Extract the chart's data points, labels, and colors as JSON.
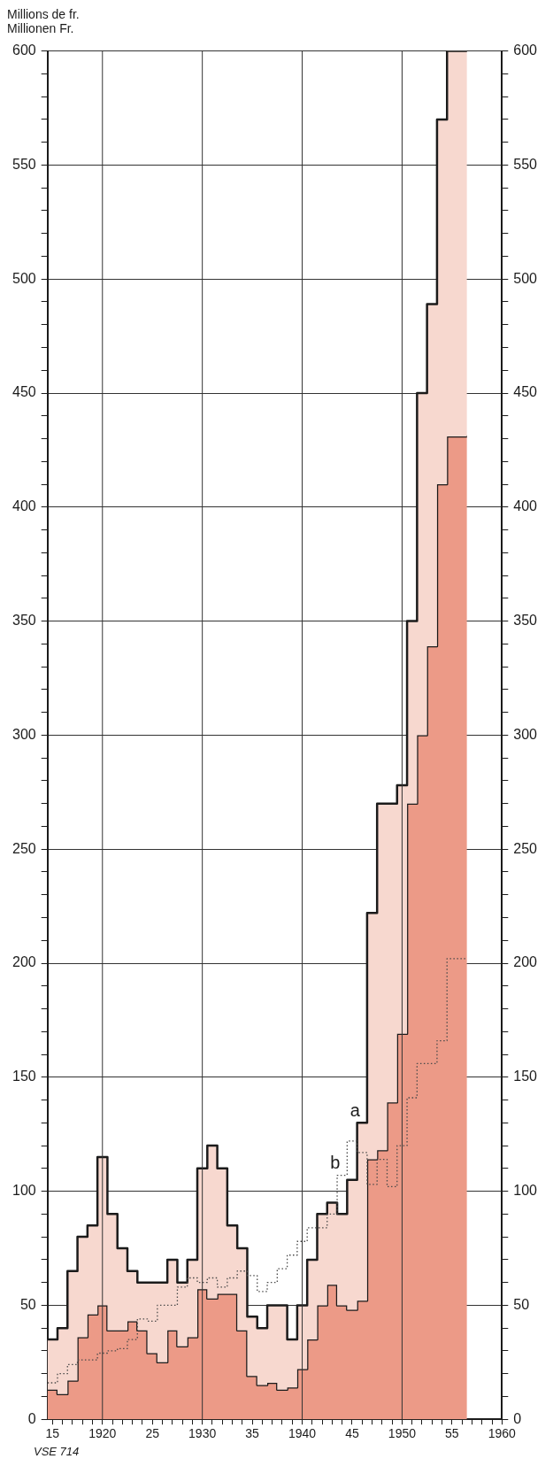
{
  "chart_data": {
    "type": "step",
    "ylabel": "Millions de fr.\nMillionen Fr.",
    "x": [
      1915,
      1916,
      1917,
      1918,
      1919,
      1920,
      1921,
      1922,
      1923,
      1924,
      1925,
      1926,
      1927,
      1928,
      1929,
      1930,
      1931,
      1932,
      1933,
      1934,
      1935,
      1936,
      1937,
      1938,
      1939,
      1940,
      1941,
      1942,
      1943,
      1944,
      1945,
      1946,
      1947,
      1948,
      1949,
      1950,
      1951,
      1952,
      1953,
      1954,
      1955,
      1956
    ],
    "series": [
      {
        "type": "area",
        "color": "#ec9a87",
        "values": [
          13,
          11,
          17,
          36,
          46,
          50,
          39,
          39,
          43,
          39,
          29,
          25,
          39,
          32,
          36,
          57,
          53,
          55,
          55,
          39,
          19,
          15,
          16,
          13,
          14,
          22,
          35,
          50,
          59,
          50,
          48,
          52,
          114,
          118,
          139,
          169,
          270,
          300,
          339,
          410,
          431,
          431
        ]
      },
      {
        "type": "area",
        "color": "#f7d8cf",
        "values": [
          35,
          40,
          65,
          80,
          85,
          115,
          90,
          75,
          65,
          60,
          60,
          60,
          70,
          60,
          70,
          110,
          120,
          110,
          85,
          75,
          45,
          40,
          50,
          50,
          35,
          50,
          70,
          90,
          95,
          90,
          105,
          130,
          222,
          270,
          270,
          278,
          350,
          450,
          489,
          570,
          600,
          600
        ]
      },
      {
        "color": "#4a4a4a",
        "line_style": "dotted",
        "values": [
          16,
          20,
          24,
          26,
          26,
          29,
          30,
          31,
          35,
          44,
          43,
          50,
          50,
          58,
          62,
          60,
          62,
          58,
          62,
          65,
          63,
          56,
          60,
          66,
          72,
          78,
          84,
          84,
          90,
          107,
          122,
          117,
          103,
          114,
          102,
          120,
          141,
          156,
          156,
          166,
          202,
          202
        ]
      }
    ],
    "xlim": [
      1914.5,
      1960
    ],
    "xticks": [
      {
        "value": 1915,
        "label": "15"
      },
      {
        "value": 1916,
        "label": null
      },
      {
        "value": 1917,
        "label": null
      },
      {
        "value": 1918,
        "label": null
      },
      {
        "value": 1919,
        "label": null
      },
      1920,
      {
        "value": 1921,
        "label": null
      },
      {
        "value": 1922,
        "label": null
      },
      {
        "value": 1923,
        "label": null
      },
      {
        "value": 1924,
        "label": null
      },
      {
        "value": 1925,
        "label": "25"
      },
      {
        "value": 1926,
        "label": null
      },
      {
        "value": 1927,
        "label": null
      },
      {
        "value": 1928,
        "label": null
      },
      {
        "value": 1929,
        "label": null
      },
      1930,
      {
        "value": 1931,
        "label": null
      },
      {
        "value": 1932,
        "label": null
      },
      {
        "value": 1933,
        "label": null
      },
      {
        "value": 1934,
        "label": null
      },
      {
        "value": 1935,
        "label": "35"
      },
      {
        "value": 1936,
        "label": null
      },
      {
        "value": 1937,
        "label": null
      },
      {
        "value": 1938,
        "label": null
      },
      {
        "value": 1939,
        "label": null
      },
      1940,
      {
        "value": 1941,
        "label": null
      },
      {
        "value": 1942,
        "label": null
      },
      {
        "value": 1943,
        "label": null
      },
      {
        "value": 1944,
        "label": null
      },
      {
        "value": 1945,
        "label": "45"
      },
      {
        "value": 1946,
        "label": null
      },
      {
        "value": 1947,
        "label": null
      },
      {
        "value": 1948,
        "label": null
      },
      {
        "value": 1949,
        "label": null
      },
      1950,
      {
        "value": 1951,
        "label": null
      },
      {
        "value": 1952,
        "label": null
      },
      {
        "value": 1953,
        "label": null
      },
      {
        "value": 1954,
        "label": null
      },
      {
        "value": 1955,
        "label": "55"
      },
      {
        "value": 1956,
        "label": null
      },
      {
        "value": 1957,
        "label": null
      },
      {
        "value": 1958,
        "label": null
      },
      {
        "value": 1959,
        "label": null
      },
      1960
    ],
    "ylim": [
      0,
      600
    ],
    "yticks": [
      0,
      {
        "value": 10,
        "label": null
      },
      {
        "value": 20,
        "label": null
      },
      {
        "value": 30,
        "label": null
      },
      {
        "value": 40,
        "label": null
      },
      50,
      {
        "value": 60,
        "label": null
      },
      {
        "value": 70,
        "label": null
      },
      {
        "value": 80,
        "label": null
      },
      {
        "value": 90,
        "label": null
      },
      100,
      {
        "value": 110,
        "label": null
      },
      {
        "value": 120,
        "label": null
      },
      {
        "value": 130,
        "label": null
      },
      {
        "value": 140,
        "label": null
      },
      150,
      {
        "value": 160,
        "label": null
      },
      {
        "value": 170,
        "label": null
      },
      {
        "value": 180,
        "label": null
      },
      {
        "value": 190,
        "label": null
      },
      200,
      {
        "value": 210,
        "label": null
      },
      {
        "value": 220,
        "label": null
      },
      {
        "value": 230,
        "label": null
      },
      {
        "value": 240,
        "label": null
      },
      250,
      {
        "value": 260,
        "label": null
      },
      {
        "value": 270,
        "label": null
      },
      {
        "value": 280,
        "label": null
      },
      {
        "value": 290,
        "label": null
      },
      300,
      {
        "value": 310,
        "label": null
      },
      {
        "value": 320,
        "label": null
      },
      {
        "value": 330,
        "label": null
      },
      {
        "value": 340,
        "label": null
      },
      350,
      {
        "value": 360,
        "label": null
      },
      {
        "value": 370,
        "label": null
      },
      {
        "value": 380,
        "label": null
      },
      {
        "value": 390,
        "label": null
      },
      400,
      {
        "value": 410,
        "label": null
      },
      {
        "value": 420,
        "label": null
      },
      {
        "value": 430,
        "label": null
      },
      {
        "value": 440,
        "label": null
      },
      450,
      {
        "value": 460,
        "label": null
      },
      {
        "value": 470,
        "label": null
      },
      {
        "value": 480,
        "label": null
      },
      {
        "value": 490,
        "label": null
      },
      500,
      {
        "value": 510,
        "label": null
      },
      {
        "value": 520,
        "label": null
      },
      {
        "value": 530,
        "label": null
      },
      {
        "value": 540,
        "label": null
      },
      550,
      {
        "value": 560,
        "label": null
      },
      {
        "value": 570,
        "label": null
      },
      {
        "value": 580,
        "label": null
      },
      {
        "value": 590,
        "label": null
      },
      600
    ],
    "y2lim": [
      0,
      600
    ],
    "y2ticks": [
      0,
      {
        "value": 10,
        "label": null
      },
      {
        "value": 20,
        "label": null
      },
      {
        "value": 30,
        "label": null
      },
      {
        "value": 40,
        "label": null
      },
      50,
      {
        "value": 60,
        "label": null
      },
      {
        "value": 70,
        "label": null
      },
      {
        "value": 80,
        "label": null
      },
      {
        "value": 90,
        "label": null
      },
      100,
      {
        "value": 110,
        "label": null
      },
      {
        "value": 120,
        "label": null
      },
      {
        "value": 130,
        "label": null
      },
      {
        "value": 140,
        "label": null
      },
      150,
      {
        "value": 160,
        "label": null
      },
      {
        "value": 170,
        "label": null
      },
      {
        "value": 180,
        "label": null
      },
      {
        "value": 190,
        "label": null
      },
      200,
      {
        "value": 210,
        "label": null
      },
      {
        "value": 220,
        "label": null
      },
      {
        "value": 230,
        "label": null
      },
      {
        "value": 240,
        "label": null
      },
      250,
      {
        "value": 260,
        "label": null
      },
      {
        "value": 270,
        "label": null
      },
      {
        "value": 280,
        "label": null
      },
      {
        "value": 290,
        "label": null
      },
      300,
      {
        "value": 310,
        "label": null
      },
      {
        "value": 320,
        "label": null
      },
      {
        "value": 330,
        "label": null
      },
      {
        "value": 340,
        "label": null
      },
      350,
      {
        "value": 360,
        "label": null
      },
      {
        "value": 370,
        "label": null
      },
      {
        "value": 380,
        "label": null
      },
      {
        "value": 390,
        "label": null
      },
      400,
      {
        "value": 410,
        "label": null
      },
      {
        "value": 420,
        "label": null
      },
      {
        "value": 430,
        "label": null
      },
      {
        "value": 440,
        "label": null
      },
      450,
      {
        "value": 460,
        "label": null
      },
      {
        "value": 470,
        "label": null
      },
      {
        "value": 480,
        "label": null
      },
      {
        "value": 490,
        "label": null
      },
      500,
      {
        "value": 510,
        "label": null
      },
      {
        "value": 520,
        "label": null
      },
      {
        "value": 530,
        "label": null
      },
      {
        "value": 540,
        "label": null
      },
      550,
      {
        "value": 560,
        "label": null
      },
      {
        "value": 570,
        "label": null
      },
      {
        "value": 580,
        "label": null
      },
      {
        "value": 590,
        "label": null
      },
      600
    ],
    "grid": "y",
    "ref_lines": [
      {
        "axis": "x",
        "value": 1920,
        "color": "#333333"
      },
      {
        "axis": "x",
        "value": 1930,
        "color": "#333333"
      },
      {
        "axis": "x",
        "value": 1940,
        "color": "#333333"
      },
      {
        "axis": "x",
        "value": 1950,
        "color": "#333333"
      }
    ],
    "marker": "none",
    "legend": false,
    "annotations": [
      {
        "text": "a",
        "x": 1946,
        "y": 130
      },
      {
        "text": "b",
        "x": 1944,
        "y": 107
      },
      "VSE 714"
    ]
  }
}
